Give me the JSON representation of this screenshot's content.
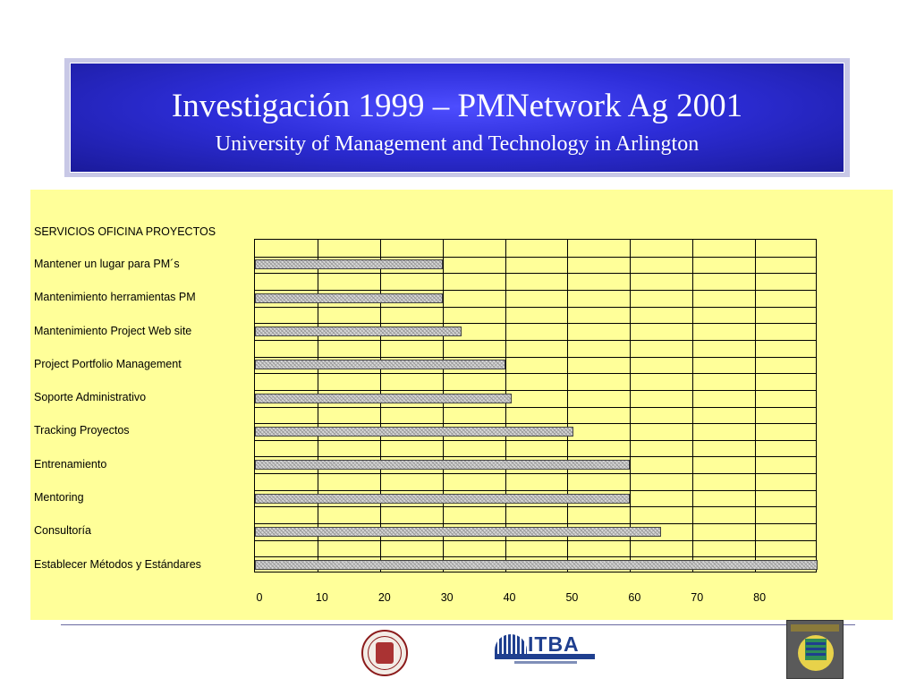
{
  "header": {
    "title": "Investigación 1999 – PMNetwork Ag 2001",
    "subtitle": "University of Management and Technology in Arlington"
  },
  "chart_data": {
    "type": "bar",
    "orientation": "horizontal",
    "title": "SERVICIOS OFICINA PROYECTOS",
    "categories": [
      "Mantener un lugar para PM´s",
      "Mantenimiento herramientas PM",
      "Mantenimiento Project Web site",
      "Project Portfolio Management",
      "Soporte Administrativo",
      "Tracking Proyectos",
      "Entrenamiento",
      "Mentoring",
      "Consultoría",
      "Establecer Métodos y Estándares"
    ],
    "values": [
      30,
      30,
      33,
      40,
      41,
      51,
      60,
      60,
      65,
      90
    ],
    "xlim": [
      0,
      90
    ],
    "xticks": [
      0,
      10,
      20,
      30,
      40,
      50,
      60,
      70,
      80
    ],
    "grid": true,
    "colors": {
      "panel": "#ffff99",
      "bar": "#d8d8d8"
    }
  },
  "footer": {
    "logos": [
      "university-seal",
      "ITBA",
      "pmo-book-cover"
    ],
    "itba_text": "ITBA"
  }
}
